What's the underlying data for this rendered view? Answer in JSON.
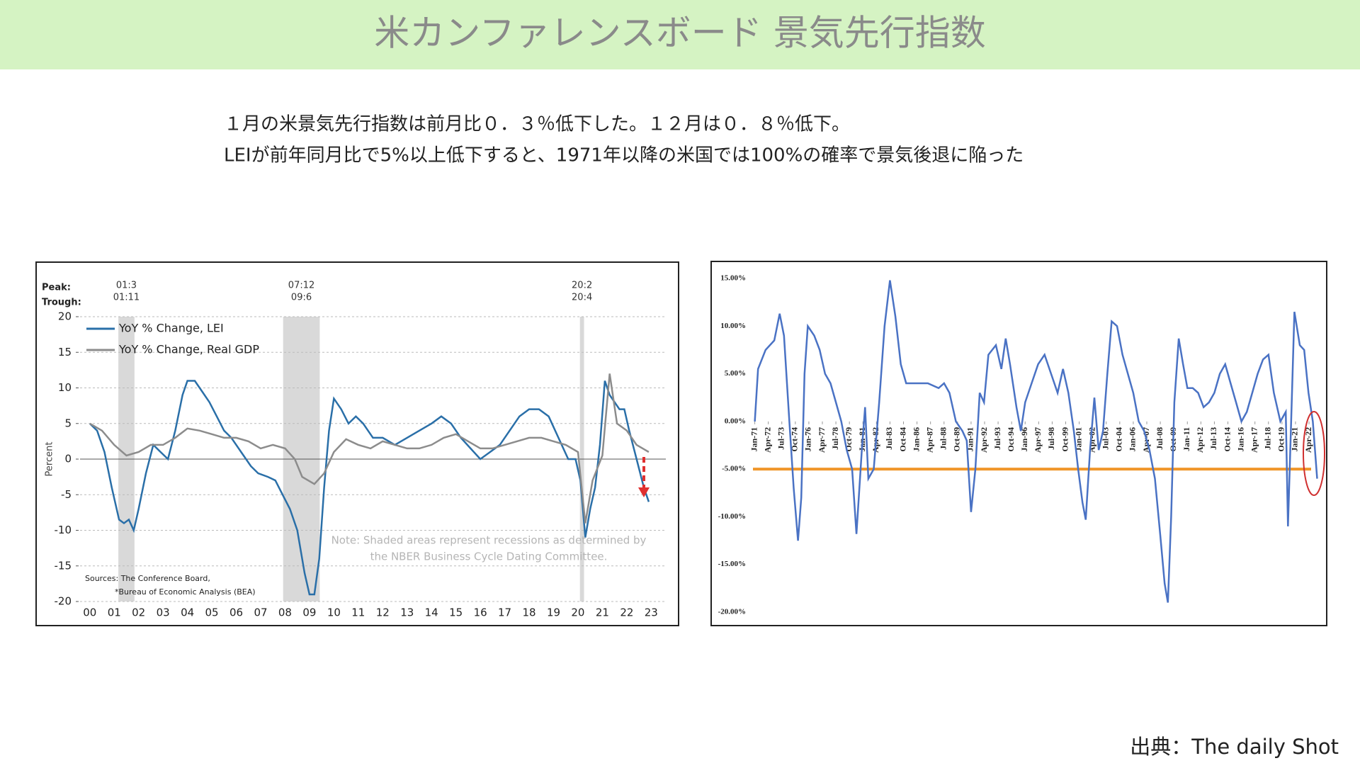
{
  "header": {
    "title": "米カンファレンスボード 景気先行指数"
  },
  "intro": {
    "lines": [
      "１月の米景気先行指数は前月比０．３％低下した。１２月は０．８％低下。",
      "LEIが前年同月比で5%以上低下すると、1971年以降の米国では100%の確率で景気後退に陥った"
    ]
  },
  "source": "出典：The daily Shot",
  "chart_data": [
    {
      "type": "line",
      "y_label": "Percent",
      "peak_label": "Peak:",
      "trough_label": "Trough:",
      "note": [
        "Note: Shaded areas represent recessions as determined by",
        "the NBER Business Cycle Dating Committee."
      ],
      "sources": [
        "Sources: The Conference Board,",
        "*Bureau of Economic Analysis (BEA)"
      ],
      "xlim": [
        1999.6,
        2023.6
      ],
      "xticks": [
        {
          "value": 2000,
          "label": "00"
        },
        {
          "value": 2001,
          "label": "01"
        },
        {
          "value": 2002,
          "label": "02"
        },
        {
          "value": 2003,
          "label": "03"
        },
        {
          "value": 2004,
          "label": "04"
        },
        {
          "value": 2005,
          "label": "05"
        },
        {
          "value": 2006,
          "label": "06"
        },
        {
          "value": 2007,
          "label": "07"
        },
        {
          "value": 2008,
          "label": "08"
        },
        {
          "value": 2009,
          "label": "09"
        },
        {
          "value": 2010,
          "label": "10"
        },
        {
          "value": 2011,
          "label": "11"
        },
        {
          "value": 2012,
          "label": "12"
        },
        {
          "value": 2013,
          "label": "13"
        },
        {
          "value": 2014,
          "label": "14"
        },
        {
          "value": 2015,
          "label": "15"
        },
        {
          "value": 2016,
          "label": "16"
        },
        {
          "value": 2017,
          "label": "17"
        },
        {
          "value": 2018,
          "label": "18"
        },
        {
          "value": 2019,
          "label": "19"
        },
        {
          "value": 2020,
          "label": "20"
        },
        {
          "value": 2021,
          "label": "21"
        },
        {
          "value": 2022,
          "label": "22"
        },
        {
          "value": 2023,
          "label": "23"
        }
      ],
      "ylim": [
        -20,
        20
      ],
      "yticks": [
        20,
        15,
        10,
        5,
        0,
        -5,
        -10,
        -15,
        -20
      ],
      "grid": true,
      "recessions": [
        {
          "peak": "01:3",
          "trough": "01:11",
          "start": 2001.17,
          "end": 2001.83
        },
        {
          "peak": "07:12",
          "trough": "09:6",
          "start": 2007.92,
          "end": 2009.42
        },
        {
          "peak": "20:2",
          "trough": "20:4",
          "start": 2020.08,
          "end": 2020.25
        }
      ],
      "series": [
        {
          "name": "YoY % Change, LEI",
          "color": "#2a6fa8",
          "x": [
            2000,
            2000.3,
            2000.6,
            2000.9,
            2001.2,
            2001.4,
            2001.6,
            2001.8,
            2002.0,
            2002.3,
            2002.6,
            2002.9,
            2003.2,
            2003.5,
            2003.8,
            2004.0,
            2004.3,
            2004.6,
            2004.9,
            2005.2,
            2005.5,
            2005.8,
            2006.2,
            2006.6,
            2006.9,
            2007.3,
            2007.6,
            2007.9,
            2008.2,
            2008.5,
            2008.8,
            2009.0,
            2009.2,
            2009.4,
            2009.6,
            2009.8,
            2010.0,
            2010.3,
            2010.6,
            2010.9,
            2011.2,
            2011.6,
            2012.0,
            2012.5,
            2013.0,
            2013.5,
            2014.0,
            2014.4,
            2014.8,
            2015.2,
            2015.6,
            2016.0,
            2016.4,
            2016.8,
            2017.2,
            2017.6,
            2018.0,
            2018.4,
            2018.8,
            2019.2,
            2019.6,
            2019.9,
            2020.1,
            2020.3,
            2020.5,
            2020.7,
            2020.9,
            2021.1,
            2021.3,
            2021.5,
            2021.7,
            2021.9,
            2022.1,
            2022.4,
            2022.7,
            2022.9
          ],
          "values": [
            5,
            4,
            1,
            -4,
            -8.5,
            -9,
            -8.5,
            -10,
            -7,
            -2,
            2,
            1,
            0,
            4,
            9,
            11,
            11,
            9.5,
            8,
            6,
            4,
            3,
            1,
            -1,
            -2,
            -2.5,
            -3,
            -5,
            -7,
            -10,
            -16,
            -19,
            -19,
            -14,
            -4,
            4,
            8.5,
            7,
            5,
            6,
            5,
            3,
            3,
            2,
            3,
            4,
            5,
            6,
            5,
            3,
            1.5,
            0,
            1,
            2,
            4,
            6,
            7,
            7,
            6,
            3,
            0,
            0,
            -3,
            -11,
            -7,
            -4,
            2,
            11,
            9,
            8,
            7,
            7,
            4,
            0,
            -4,
            -6
          ]
        },
        {
          "name": "YoY % Change, Real GDP",
          "color": "#8c8c8c",
          "x": [
            2000,
            2000.5,
            2001.0,
            2001.5,
            2002.0,
            2002.5,
            2003.0,
            2003.5,
            2004.0,
            2004.5,
            2005.0,
            2005.5,
            2006.0,
            2006.5,
            2007.0,
            2007.5,
            2008.0,
            2008.4,
            2008.7,
            2009.2,
            2009.6,
            2010.0,
            2010.5,
            2011.0,
            2011.5,
            2012.0,
            2012.5,
            2013.0,
            2013.5,
            2014.0,
            2014.5,
            2015.0,
            2015.5,
            2016.0,
            2016.5,
            2017.0,
            2017.5,
            2018.0,
            2018.5,
            2019.0,
            2019.5,
            2020.0,
            2020.3,
            2020.6,
            2021.0,
            2021.3,
            2021.6,
            2022.0,
            2022.4,
            2022.9
          ],
          "values": [
            5,
            4,
            2,
            0.5,
            1,
            2,
            2,
            3,
            4.3,
            4,
            3.5,
            3,
            3,
            2.5,
            1.5,
            2,
            1.5,
            0,
            -2.5,
            -3.5,
            -2,
            1,
            2.8,
            2,
            1.5,
            2.5,
            2,
            1.5,
            1.5,
            2,
            3,
            3.5,
            2.5,
            1.5,
            1.5,
            2,
            2.5,
            3,
            3,
            2.5,
            2,
            1,
            -9,
            -3,
            0.5,
            12,
            5,
            4,
            2,
            1
          ]
        }
      ]
    },
    {
      "type": "line",
      "xlim": [
        1970.7,
        2023.1
      ],
      "xticks": [
        {
          "value": 1971,
          "label": "Jan-71"
        },
        {
          "value": 1972.25,
          "label": "Apr-72"
        },
        {
          "value": 1973.5,
          "label": "Jul-73"
        },
        {
          "value": 1974.75,
          "label": "Oct-74"
        },
        {
          "value": 1976,
          "label": "Jan-76"
        },
        {
          "value": 1977.25,
          "label": "Apr-77"
        },
        {
          "value": 1978.5,
          "label": "Jul-78"
        },
        {
          "value": 1979.75,
          "label": "Oct-79"
        },
        {
          "value": 1981,
          "label": "Jan-81"
        },
        {
          "value": 1982.25,
          "label": "Apr-82"
        },
        {
          "value": 1983.5,
          "label": "Jul-83"
        },
        {
          "value": 1984.75,
          "label": "Oct-84"
        },
        {
          "value": 1986,
          "label": "Jan-86"
        },
        {
          "value": 1987.25,
          "label": "Apr-87"
        },
        {
          "value": 1988.5,
          "label": "Jul-88"
        },
        {
          "value": 1989.75,
          "label": "Oct-89"
        },
        {
          "value": 1991,
          "label": "Jan-91"
        },
        {
          "value": 1992.25,
          "label": "Apr-92"
        },
        {
          "value": 1993.5,
          "label": "Jul-93"
        },
        {
          "value": 1994.75,
          "label": "Oct-94"
        },
        {
          "value": 1996,
          "label": "Jan-96"
        },
        {
          "value": 1997.25,
          "label": "Apr-97"
        },
        {
          "value": 1998.5,
          "label": "Jul-98"
        },
        {
          "value": 1999.75,
          "label": "Oct-99"
        },
        {
          "value": 2001,
          "label": "Jan-01"
        },
        {
          "value": 2002.25,
          "label": "Apr-02"
        },
        {
          "value": 2003.5,
          "label": "Jul-03"
        },
        {
          "value": 2004.75,
          "label": "Oct-04"
        },
        {
          "value": 2006,
          "label": "Jan-06"
        },
        {
          "value": 2007.25,
          "label": "Apr-07"
        },
        {
          "value": 2008.5,
          "label": "Jul-08"
        },
        {
          "value": 2009.75,
          "label": "Oct-09"
        },
        {
          "value": 2011,
          "label": "Jan-11"
        },
        {
          "value": 2012.25,
          "label": "Apr-12"
        },
        {
          "value": 2013.5,
          "label": "Jul-13"
        },
        {
          "value": 2014.75,
          "label": "Oct-14"
        },
        {
          "value": 2016,
          "label": "Jan-16"
        },
        {
          "value": 2017.25,
          "label": "Apr-17"
        },
        {
          "value": 2018.5,
          "label": "Jul-18"
        },
        {
          "value": 2019.75,
          "label": "Oct-19"
        },
        {
          "value": 2021,
          "label": "Jan-21"
        },
        {
          "value": 2022.25,
          "label": "Apr-22"
        }
      ],
      "ylim": [
        -20,
        15
      ],
      "yticks": [
        {
          "value": 15,
          "label": "15.00%"
        },
        {
          "value": 10,
          "label": "10.00%"
        },
        {
          "value": 5,
          "label": "5.00%"
        },
        {
          "value": 0,
          "label": "0.00%"
        },
        {
          "value": -5,
          "label": "-5.00%"
        },
        {
          "value": -10,
          "label": "-10.00%"
        },
        {
          "value": -15,
          "label": "-15.00%"
        },
        {
          "value": -20,
          "label": "-20.00%"
        }
      ],
      "grid": false,
      "reference_line": {
        "value": -5,
        "color": "#f0962a"
      },
      "series": [
        {
          "color": "#4a72c4",
          "x": [
            1971,
            1971.3,
            1972,
            1972.8,
            1973.3,
            1973.7,
            1974.2,
            1974.6,
            1975.0,
            1975.3,
            1975.6,
            1975.9,
            1976.5,
            1977.0,
            1977.5,
            1978.0,
            1978.5,
            1979.0,
            1979.5,
            1980.0,
            1980.4,
            1980.9,
            1981.2,
            1981.5,
            1982.0,
            1982.5,
            1983.0,
            1983.5,
            1984.0,
            1984.5,
            1985.0,
            1986.0,
            1987.0,
            1988.0,
            1988.5,
            1989.0,
            1989.6,
            1990.2,
            1990.6,
            1991.0,
            1991.4,
            1991.8,
            1992.2,
            1992.6,
            1993.3,
            1993.8,
            1994.2,
            1994.6,
            1995.2,
            1995.6,
            1996.0,
            1996.6,
            1997.2,
            1997.8,
            1998.4,
            1999.0,
            1999.5,
            2000.0,
            2000.5,
            2000.9,
            2001.3,
            2001.6,
            2002.0,
            2002.4,
            2002.8,
            2003.2,
            2003.6,
            2004.0,
            2004.5,
            2005.0,
            2005.5,
            2006.0,
            2006.5,
            2007.0,
            2007.5,
            2008.0,
            2008.5,
            2008.9,
            2009.2,
            2009.5,
            2009.8,
            2010.2,
            2010.6,
            2011.0,
            2011.5,
            2012.0,
            2012.5,
            2013.0,
            2013.5,
            2014.0,
            2014.5,
            2015.0,
            2015.5,
            2016.0,
            2016.5,
            2017.0,
            2017.5,
            2018.0,
            2018.5,
            2019.0,
            2019.6,
            2020.1,
            2020.3,
            2020.6,
            2020.9,
            2021.4,
            2021.8,
            2022.2,
            2022.6,
            2023.0
          ],
          "values": [
            0,
            5.5,
            7.5,
            8.5,
            11.3,
            9,
            0,
            -7,
            -12.5,
            -8,
            5,
            10,
            9,
            7.5,
            5,
            4,
            2,
            0,
            -3,
            -5,
            -11.8,
            -3,
            1.5,
            -6,
            -5,
            2,
            10,
            14.8,
            11,
            6,
            4,
            4,
            4,
            3.5,
            4,
            3,
            0,
            -1,
            -2,
            -9.5,
            -5,
            3,
            2,
            7,
            8,
            5.5,
            8.7,
            6,
            1.5,
            -1,
            2,
            4,
            6,
            7,
            5,
            3,
            5.5,
            3,
            -1,
            -5,
            -8.5,
            -10.3,
            -3,
            2.5,
            -3,
            -1,
            5,
            10.5,
            10,
            7,
            5,
            3,
            0,
            -1,
            -3,
            -6,
            -12,
            -17,
            -19,
            -10,
            2,
            8.7,
            6,
            3.5,
            3.5,
            3,
            1.5,
            2,
            3,
            5,
            6,
            4,
            2,
            0,
            1,
            3,
            5,
            6.5,
            7,
            3,
            0,
            1,
            -11,
            0,
            11.5,
            8,
            7.5,
            3,
            0,
            -6
          ]
        }
      ]
    }
  ]
}
